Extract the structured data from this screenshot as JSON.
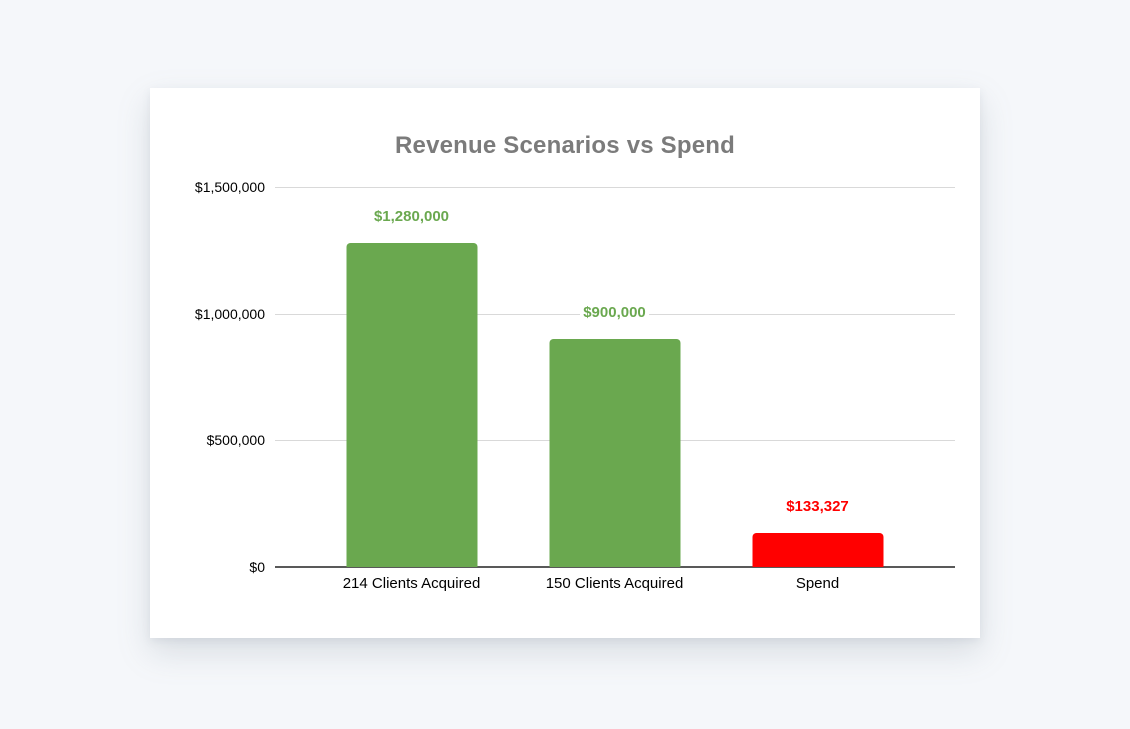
{
  "page": {
    "background_color": "#f5f7fa",
    "card_background_color": "#ffffff"
  },
  "chart_data": {
    "type": "bar",
    "title": "Revenue Scenarios vs Spend",
    "categories": [
      "214 Clients Acquired",
      "150 Clients Acquired",
      "Spend"
    ],
    "values": [
      1280000,
      900000,
      133327
    ],
    "data_labels": [
      "$1,280,000",
      "$900,000",
      "$133,327"
    ],
    "bar_colors": [
      "#6aa84f",
      "#6aa84f",
      "#ff0000"
    ],
    "data_label_colors": [
      "#6aa84f",
      "#6aa84f",
      "#ff0000"
    ],
    "y_ticks": [
      "$1,500,000",
      "$1,000,000",
      "$500,000",
      "$0"
    ],
    "ylim": [
      0,
      1500000
    ],
    "xlabel": "",
    "ylabel": "",
    "grid": true,
    "legend_position": "none",
    "colors": {
      "title_text": "#7b7b7b",
      "axis_tick_text": "#000000",
      "gridline": "#d9d9d9",
      "axis_line": "#595959"
    }
  }
}
